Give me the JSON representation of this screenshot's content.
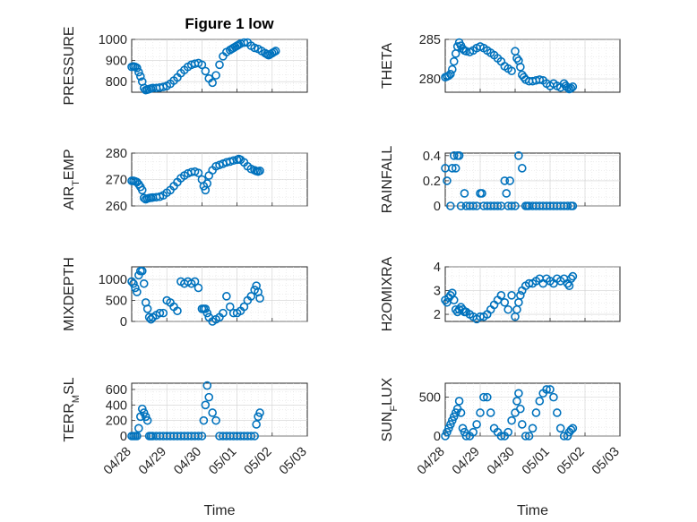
{
  "figure": {
    "title": "Figure 1 low"
  },
  "chart_data": [
    {
      "type": "scatter",
      "title": "Figure 1 low",
      "ylabel": "PRESSURE",
      "xlabel": "",
      "ylim": [
        750,
        1000
      ],
      "yticks": [
        "800",
        "900",
        "1000"
      ],
      "yticks_v": [
        800,
        900,
        1000
      ],
      "xlim": [
        0,
        5
      ],
      "xticks": [],
      "series": [
        {
          "x": [
            0.0,
            0.05,
            0.1,
            0.15,
            0.2,
            0.25,
            0.3,
            0.35,
            0.4,
            0.45,
            0.5,
            0.55,
            0.6,
            0.7,
            0.8,
            0.9,
            1.0,
            1.1,
            1.2,
            1.3,
            1.4,
            1.5,
            1.6,
            1.7,
            1.8,
            1.9,
            2.0,
            2.1,
            2.2,
            2.3,
            2.4,
            2.5,
            2.6,
            2.7,
            2.8,
            2.85,
            2.9,
            2.95,
            3.0,
            3.05,
            3.1,
            3.2,
            3.3,
            3.4,
            3.5,
            3.6,
            3.7,
            3.8,
            3.85,
            3.9,
            3.95,
            4.0,
            4.05,
            4.1
          ],
          "y": [
            870,
            872,
            870,
            865,
            845,
            825,
            800,
            770,
            760,
            762,
            765,
            768,
            770,
            770,
            772,
            775,
            780,
            790,
            805,
            820,
            840,
            855,
            870,
            880,
            885,
            888,
            880,
            850,
            815,
            795,
            830,
            880,
            920,
            940,
            950,
            955,
            960,
            965,
            970,
            975,
            980,
            985,
            985,
            970,
            960,
            955,
            945,
            935,
            930,
            925,
            930,
            935,
            940,
            945
          ]
        }
      ]
    },
    {
      "type": "scatter",
      "title": "",
      "ylabel": "THETA",
      "xlabel": "",
      "ylim": [
        278.3,
        285
      ],
      "yticks": [
        "280",
        "285"
      ],
      "yticks_v": [
        280,
        285
      ],
      "xlim": [
        0,
        5
      ],
      "xticks": [],
      "series": [
        {
          "x": [
            0.0,
            0.05,
            0.1,
            0.15,
            0.2,
            0.25,
            0.3,
            0.35,
            0.4,
            0.45,
            0.5,
            0.55,
            0.6,
            0.7,
            0.8,
            0.9,
            1.0,
            1.1,
            1.2,
            1.3,
            1.4,
            1.5,
            1.6,
            1.7,
            1.8,
            1.9,
            2.0,
            2.05,
            2.1,
            2.15,
            2.2,
            2.25,
            2.3,
            2.4,
            2.5,
            2.6,
            2.7,
            2.8,
            2.9,
            3.0,
            3.1,
            3.2,
            3.3,
            3.4,
            3.45,
            3.5,
            3.55,
            3.6,
            3.65
          ],
          "y": [
            280.2,
            280.3,
            280.4,
            280.6,
            281.2,
            282.2,
            283.2,
            284.1,
            284.6,
            284.2,
            283.8,
            283.6,
            283.5,
            283.4,
            283.6,
            283.9,
            284.1,
            283.9,
            283.6,
            283.3,
            283.0,
            282.6,
            282.2,
            281.6,
            281.3,
            281.0,
            283.5,
            282.6,
            282.3,
            281.5,
            280.5,
            280.2,
            279.9,
            279.7,
            279.7,
            279.8,
            279.9,
            279.8,
            279.4,
            279.1,
            279.4,
            279.1,
            278.9,
            279.4,
            279.1,
            278.9,
            278.7,
            278.8,
            279.0
          ]
        }
      ]
    },
    {
      "type": "scatter",
      "title": "",
      "ylabel": "AIR_TEMP",
      "xlabel": "",
      "ylim": [
        260,
        280
      ],
      "yticks": [
        "260",
        "270",
        "280"
      ],
      "yticks_v": [
        260,
        270,
        280
      ],
      "xlim": [
        0,
        5
      ],
      "xticks": [],
      "series": [
        {
          "x": [
            0.0,
            0.05,
            0.1,
            0.15,
            0.2,
            0.25,
            0.3,
            0.35,
            0.4,
            0.45,
            0.5,
            0.55,
            0.6,
            0.7,
            0.8,
            0.9,
            1.0,
            1.1,
            1.2,
            1.3,
            1.4,
            1.5,
            1.6,
            1.7,
            1.8,
            1.9,
            2.0,
            2.05,
            2.1,
            2.15,
            2.2,
            2.3,
            2.4,
            2.5,
            2.6,
            2.7,
            2.8,
            2.9,
            3.0,
            3.05,
            3.1,
            3.2,
            3.3,
            3.4,
            3.5,
            3.55,
            3.6,
            3.65
          ],
          "y": [
            269.5,
            269.5,
            269.3,
            269.0,
            268.2,
            267.2,
            266.0,
            263.0,
            262.5,
            262.8,
            263.0,
            263.1,
            263.2,
            263.3,
            263.5,
            264.0,
            265.0,
            266.0,
            267.5,
            269.0,
            270.5,
            271.5,
            272.3,
            272.8,
            273.0,
            272.5,
            270.0,
            267.5,
            266.0,
            268.5,
            271.5,
            273.5,
            275.0,
            275.5,
            276.0,
            276.5,
            276.8,
            277.2,
            277.5,
            277.8,
            277.5,
            276.5,
            275.0,
            274.0,
            273.5,
            273.2,
            273.0,
            273.3
          ]
        }
      ]
    },
    {
      "type": "scatter",
      "title": "",
      "ylabel": "RAINFALL",
      "xlabel": "",
      "ylim": [
        0,
        0.42
      ],
      "yticks": [
        "0",
        "0.2",
        "0.4"
      ],
      "yticks_v": [
        0,
        0.2,
        0.4
      ],
      "xlim": [
        0,
        5
      ],
      "xticks": [],
      "series": [
        {
          "x": [
            0.0,
            0.05,
            0.15,
            0.2,
            0.25,
            0.3,
            0.35,
            0.4,
            0.45,
            0.55,
            0.6,
            0.7,
            0.8,
            0.9,
            1.0,
            1.05,
            1.1,
            1.2,
            1.3,
            1.4,
            1.5,
            1.6,
            1.7,
            1.75,
            1.8,
            1.85,
            1.9,
            2.0,
            2.1,
            2.2,
            2.3,
            2.35,
            2.4,
            2.5,
            2.6,
            2.7,
            2.8,
            2.9,
            3.0,
            3.1,
            3.2,
            3.3,
            3.4,
            3.5,
            3.6,
            3.65
          ],
          "y": [
            0.3,
            0.2,
            0.0,
            0.3,
            0.4,
            0.3,
            0.4,
            0.4,
            0.0,
            0.1,
            0.0,
            0.0,
            0.0,
            0.0,
            0.1,
            0.1,
            0.0,
            0.0,
            0.0,
            0.0,
            0.0,
            0.0,
            0.2,
            0.1,
            0.0,
            0.2,
            0.0,
            0.0,
            0.4,
            0.3,
            0.0,
            0.0,
            0.0,
            0.0,
            0.0,
            0.0,
            0.0,
            0.0,
            0.0,
            0.0,
            0.0,
            0.0,
            0.0,
            0.0,
            0.0,
            0.0
          ]
        }
      ]
    },
    {
      "type": "scatter",
      "title": "",
      "ylabel": "MIXDEPTH",
      "xlabel": "",
      "ylim": [
        0,
        1300
      ],
      "yticks": [
        "0",
        "500",
        "1000"
      ],
      "yticks_v": [
        0,
        500,
        1000
      ],
      "xlim": [
        0,
        5
      ],
      "xticks": [],
      "series": [
        {
          "x": [
            0.0,
            0.05,
            0.1,
            0.15,
            0.2,
            0.25,
            0.3,
            0.35,
            0.4,
            0.45,
            0.5,
            0.55,
            0.6,
            0.7,
            0.8,
            0.9,
            1.0,
            1.1,
            1.2,
            1.3,
            1.4,
            1.5,
            1.6,
            1.7,
            1.8,
            1.9,
            2.0,
            2.05,
            2.1,
            2.15,
            2.2,
            2.3,
            2.4,
            2.5,
            2.6,
            2.7,
            2.8,
            2.9,
            3.0,
            3.1,
            3.2,
            3.3,
            3.4,
            3.5,
            3.55,
            3.6,
            3.65
          ],
          "y": [
            950,
            900,
            800,
            700,
            1100,
            1200,
            1200,
            900,
            450,
            300,
            100,
            50,
            100,
            150,
            200,
            200,
            500,
            450,
            350,
            250,
            950,
            900,
            950,
            900,
            950,
            800,
            300,
            300,
            300,
            200,
            100,
            0,
            50,
            100,
            200,
            600,
            350,
            200,
            200,
            250,
            350,
            500,
            600,
            750,
            850,
            700,
            550
          ]
        }
      ]
    },
    {
      "type": "scatter",
      "title": "",
      "ylabel": "H2OMIXRA",
      "xlabel": "",
      "ylim": [
        1.7,
        4.0
      ],
      "yticks": [
        "2",
        "3",
        "4"
      ],
      "yticks_v": [
        2,
        3,
        4
      ],
      "xlim": [
        0,
        5
      ],
      "xticks": [],
      "series": [
        {
          "x": [
            0.0,
            0.05,
            0.1,
            0.15,
            0.2,
            0.25,
            0.3,
            0.35,
            0.4,
            0.45,
            0.5,
            0.55,
            0.6,
            0.7,
            0.8,
            0.9,
            1.0,
            1.1,
            1.2,
            1.3,
            1.4,
            1.5,
            1.6,
            1.7,
            1.8,
            1.9,
            2.0,
            2.05,
            2.1,
            2.15,
            2.2,
            2.3,
            2.4,
            2.5,
            2.6,
            2.7,
            2.8,
            2.9,
            3.0,
            3.1,
            3.2,
            3.3,
            3.4,
            3.5,
            3.55,
            3.6,
            3.65
          ],
          "y": [
            2.6,
            2.5,
            2.7,
            2.8,
            2.9,
            2.6,
            2.2,
            2.1,
            2.2,
            2.3,
            2.2,
            2.1,
            2.1,
            2.0,
            1.9,
            1.8,
            1.9,
            1.9,
            2.0,
            2.2,
            2.4,
            2.6,
            2.8,
            2.5,
            2.2,
            2.8,
            1.9,
            2.2,
            2.5,
            2.8,
            3.0,
            3.2,
            3.3,
            3.3,
            3.4,
            3.5,
            3.3,
            3.5,
            3.4,
            3.3,
            3.5,
            3.4,
            3.5,
            3.3,
            3.2,
            3.5,
            3.6
          ]
        }
      ]
    },
    {
      "type": "scatter",
      "title": "",
      "ylabel": "TERR_MSL",
      "xlabel": "Time",
      "ylim": [
        0,
        680
      ],
      "yticks": [
        "0",
        "200",
        "400",
        "600"
      ],
      "yticks_v": [
        0,
        200,
        400,
        600
      ],
      "xlim": [
        0,
        5
      ],
      "xticks": [
        "04/28",
        "04/29",
        "04/30",
        "05/01",
        "05/02",
        "05/03"
      ],
      "xticks_v": [
        0,
        1,
        2,
        3,
        4,
        5
      ],
      "series": [
        {
          "x": [
            0.0,
            0.05,
            0.1,
            0.15,
            0.2,
            0.25,
            0.3,
            0.35,
            0.4,
            0.45,
            0.5,
            0.55,
            0.6,
            0.7,
            0.8,
            0.9,
            1.0,
            1.1,
            1.2,
            1.3,
            1.4,
            1.5,
            1.6,
            1.7,
            1.8,
            1.9,
            2.0,
            2.05,
            2.1,
            2.15,
            2.2,
            2.3,
            2.4,
            2.5,
            2.6,
            2.7,
            2.8,
            2.9,
            3.0,
            3.1,
            3.2,
            3.3,
            3.4,
            3.5,
            3.55,
            3.6,
            3.65
          ],
          "y": [
            0,
            0,
            0,
            0,
            100,
            250,
            350,
            300,
            250,
            200,
            0,
            0,
            0,
            0,
            0,
            0,
            0,
            0,
            0,
            0,
            0,
            0,
            0,
            0,
            0,
            0,
            0,
            200,
            400,
            650,
            500,
            300,
            200,
            0,
            0,
            0,
            0,
            0,
            0,
            0,
            0,
            0,
            0,
            0,
            150,
            250,
            300
          ]
        }
      ]
    },
    {
      "type": "scatter",
      "title": "",
      "ylabel": "SUN_FLUX",
      "xlabel": "Time",
      "ylim": [
        0,
        680
      ],
      "yticks": [
        "0",
        "500"
      ],
      "yticks_v": [
        0,
        500
      ],
      "xlim": [
        0,
        5
      ],
      "xticks": [
        "04/28",
        "04/29",
        "04/30",
        "05/01",
        "05/02",
        "05/03"
      ],
      "xticks_v": [
        0,
        1,
        2,
        3,
        4,
        5
      ],
      "series": [
        {
          "x": [
            0.0,
            0.05,
            0.1,
            0.15,
            0.2,
            0.25,
            0.3,
            0.35,
            0.4,
            0.45,
            0.5,
            0.55,
            0.6,
            0.7,
            0.8,
            0.9,
            1.0,
            1.1,
            1.2,
            1.3,
            1.4,
            1.5,
            1.6,
            1.7,
            1.8,
            1.9,
            2.0,
            2.05,
            2.1,
            2.15,
            2.2,
            2.3,
            2.4,
            2.5,
            2.6,
            2.7,
            2.8,
            2.9,
            3.0,
            3.1,
            3.2,
            3.3,
            3.4,
            3.5,
            3.55,
            3.6,
            3.65
          ],
          "y": [
            0,
            50,
            100,
            150,
            200,
            250,
            300,
            350,
            450,
            300,
            100,
            50,
            0,
            0,
            50,
            150,
            300,
            500,
            500,
            300,
            100,
            50,
            0,
            0,
            50,
            200,
            300,
            450,
            550,
            350,
            150,
            0,
            0,
            100,
            300,
            450,
            550,
            600,
            600,
            500,
            300,
            100,
            0,
            0,
            50,
            80,
            100
          ]
        }
      ]
    }
  ]
}
